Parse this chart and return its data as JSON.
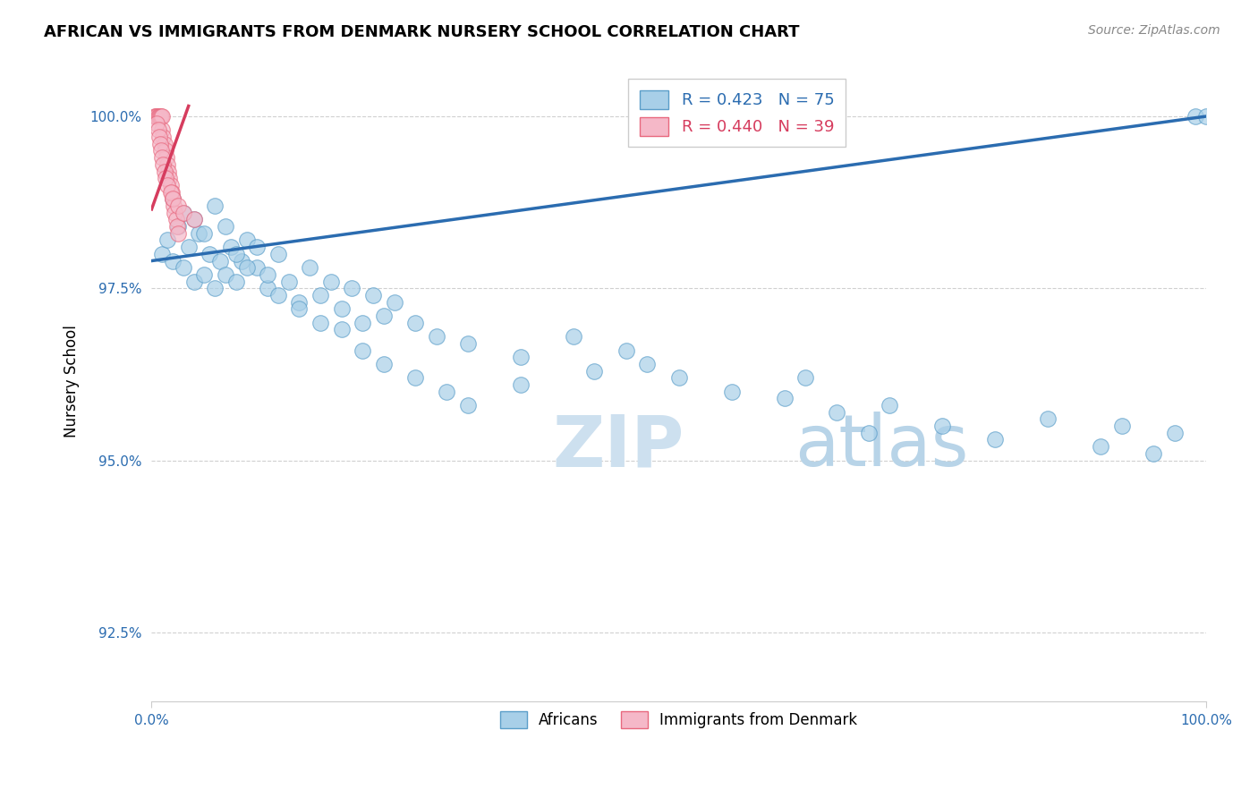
{
  "title": "AFRICAN VS IMMIGRANTS FROM DENMARK NURSERY SCHOOL CORRELATION CHART",
  "source": "Source: ZipAtlas.com",
  "ylabel": "Nursery School",
  "yticks": [
    92.5,
    95.0,
    97.5,
    100.0
  ],
  "ytick_labels": [
    "92.5%",
    "95.0%",
    "97.5%",
    "100.0%"
  ],
  "legend_blue_label": "Africans",
  "legend_pink_label": "Immigrants from Denmark",
  "legend_r_blue": "R = 0.423",
  "legend_n_blue": "N = 75",
  "legend_r_pink": "R = 0.440",
  "legend_n_pink": "N = 39",
  "blue_color": "#a8cfe8",
  "pink_color": "#f5b8c8",
  "blue_edge_color": "#5b9ec9",
  "pink_edge_color": "#e8687e",
  "blue_line_color": "#2b6cb0",
  "pink_line_color": "#d63c5e",
  "watermark_zip_color": "#cde0ef",
  "watermark_atlas_color": "#b8d4e8",
  "blue_x": [
    1.0,
    1.5,
    2.0,
    2.5,
    3.0,
    3.5,
    4.0,
    4.5,
    5.0,
    5.5,
    6.0,
    6.5,
    7.0,
    7.5,
    8.0,
    8.5,
    9.0,
    10.0,
    11.0,
    12.0,
    13.0,
    14.0,
    15.0,
    16.0,
    17.0,
    18.0,
    19.0,
    20.0,
    21.0,
    22.0,
    23.0,
    25.0,
    27.0,
    30.0,
    35.0,
    40.0,
    42.0,
    45.0,
    47.0,
    50.0,
    55.0,
    60.0,
    62.0,
    65.0,
    68.0,
    70.0,
    75.0,
    80.0,
    85.0,
    90.0,
    92.0,
    95.0,
    97.0,
    99.0,
    100.0,
    2.0,
    3.0,
    4.0,
    5.0,
    6.0,
    7.0,
    8.0,
    9.0,
    10.0,
    11.0,
    12.0,
    14.0,
    16.0,
    18.0,
    20.0,
    22.0,
    25.0,
    28.0,
    30.0,
    35.0
  ],
  "blue_y": [
    98.0,
    98.2,
    97.9,
    98.4,
    97.8,
    98.1,
    97.6,
    98.3,
    97.7,
    98.0,
    97.5,
    97.9,
    97.7,
    98.1,
    97.6,
    97.9,
    98.2,
    97.8,
    97.5,
    98.0,
    97.6,
    97.3,
    97.8,
    97.4,
    97.6,
    97.2,
    97.5,
    97.0,
    97.4,
    97.1,
    97.3,
    97.0,
    96.8,
    96.7,
    96.5,
    96.8,
    96.3,
    96.6,
    96.4,
    96.2,
    96.0,
    95.9,
    96.2,
    95.7,
    95.4,
    95.8,
    95.5,
    95.3,
    95.6,
    95.2,
    95.5,
    95.1,
    95.4,
    100.0,
    100.0,
    98.8,
    98.6,
    98.5,
    98.3,
    98.7,
    98.4,
    98.0,
    97.8,
    98.1,
    97.7,
    97.4,
    97.2,
    97.0,
    96.9,
    96.6,
    96.4,
    96.2,
    96.0,
    95.8,
    96.1
  ],
  "pink_x": [
    0.3,
    0.4,
    0.5,
    0.6,
    0.7,
    0.8,
    0.9,
    1.0,
    1.0,
    1.1,
    1.2,
    1.3,
    1.4,
    1.5,
    1.6,
    1.7,
    1.8,
    1.9,
    2.0,
    2.1,
    2.2,
    2.3,
    2.4,
    2.5,
    0.5,
    0.6,
    0.7,
    0.8,
    0.9,
    1.0,
    1.1,
    1.2,
    1.3,
    1.5,
    1.8,
    2.0,
    2.5,
    3.0,
    4.0
  ],
  "pink_y": [
    100.0,
    100.0,
    100.0,
    100.0,
    100.0,
    100.0,
    100.0,
    100.0,
    99.8,
    99.7,
    99.6,
    99.5,
    99.4,
    99.3,
    99.2,
    99.1,
    99.0,
    98.9,
    98.8,
    98.7,
    98.6,
    98.5,
    98.4,
    98.3,
    99.9,
    99.8,
    99.7,
    99.6,
    99.5,
    99.4,
    99.3,
    99.2,
    99.1,
    99.0,
    98.9,
    98.8,
    98.7,
    98.6,
    98.5
  ]
}
